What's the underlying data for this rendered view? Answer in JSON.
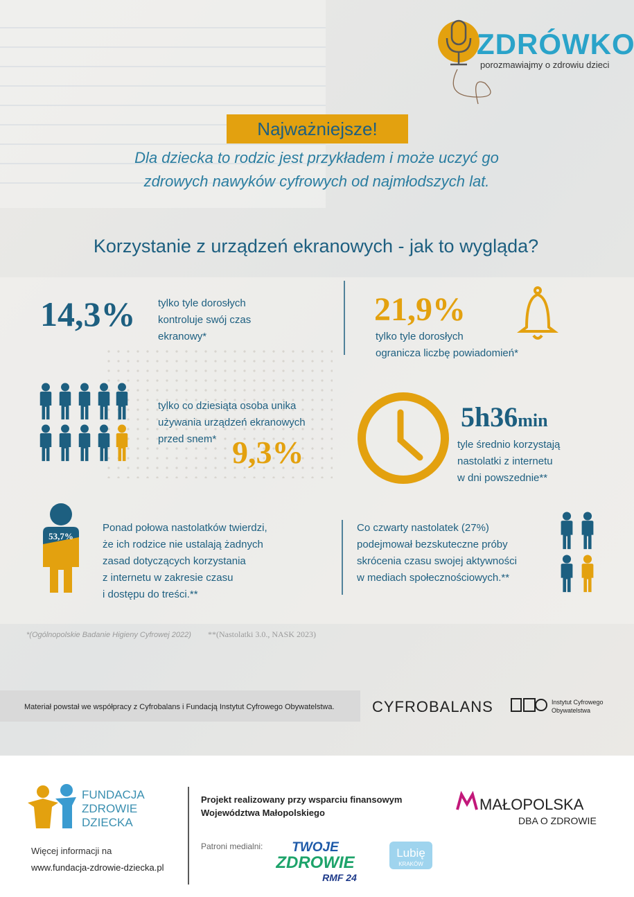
{
  "logo": {
    "name": "ZDRÓWKO",
    "tagline": "porozmawiajmy o zdrowiu dzieci"
  },
  "highlight": {
    "title": "Najważniejsze!",
    "lines": [
      "Dla dziecka to rodzic jest przykładem i może uczyć go",
      "zdrowych nawyków cyfrowych od najmłodszych lat."
    ]
  },
  "heading": "Korzystanie z urządzeń ekranowych - jak to wygląda?",
  "stats": [
    {
      "value": "14,3%",
      "lines": [
        "tylko tyle dorosłych",
        "kontroluje swój czas",
        "ekranowy*"
      ]
    },
    {
      "value": "21,9%",
      "lines": [
        "tylko tyle dorosłych",
        "ogranicza liczbę powiadomień*"
      ]
    },
    {
      "value": "9,3%",
      "lines": [
        "tylko co dziesiąta osoba unika",
        "używania urządzeń ekranowych",
        "przed snem*"
      ]
    },
    {
      "value": "5h36",
      "unit": "min",
      "lines": [
        "tyle średnio korzystają",
        "nastolatki z internetu",
        "w dni powszednie**"
      ]
    },
    {
      "value": "53,7%",
      "lines": [
        "Ponad połowa nastolatków twierdzi,",
        "że ich rodzice nie ustalają żadnych",
        "zasad dotyczących korzystania",
        "z internetu w zakresie czasu",
        "i dostępu do treści.**"
      ]
    },
    {
      "lines": [
        "Co czwarty nastolatek (27%)",
        "podejmował bezskuteczne próby",
        "skrócenia czasu swojej aktywności",
        "w mediach społecznościowych.**"
      ]
    }
  ],
  "footnotes": [
    "*(Ogólnopolskie Badanie Higieny Cyfrowej 2022)",
    "**(Nastolatki 3.0., NASK 2023)"
  ],
  "cooperation": {
    "text": "Materiał powstał we współpracy z Cyfrobalans i Fundacją Instytut Cyfrowego Obywatelstwa.",
    "cyfrobalans": "CYFROBALANS",
    "ico_lines": [
      "Instytut Cyfrowego",
      "Obywatelstwa"
    ]
  },
  "footer": {
    "foundation_lines": [
      "FUNDACJA",
      "ZDROWIE",
      "DZIECKA"
    ],
    "info_lines": [
      "Więcej informacji na",
      "www.fundacja-zdrowie-dziecka.pl"
    ],
    "project_lines": [
      "Projekt realizowany przy wsparciu finansowym",
      "Województwa Małopolskiego"
    ],
    "malopolska": "MAŁOPOLSKA",
    "malopolska_sub": "DBA O ZDROWIE",
    "patrons_label": "Patroni medialni:",
    "twoje_zdrowie": [
      "TWOJE",
      "ZDROWIE",
      "RMF 24"
    ],
    "lubie_krakow": [
      "Lubię",
      "KRAKÓW"
    ]
  }
}
